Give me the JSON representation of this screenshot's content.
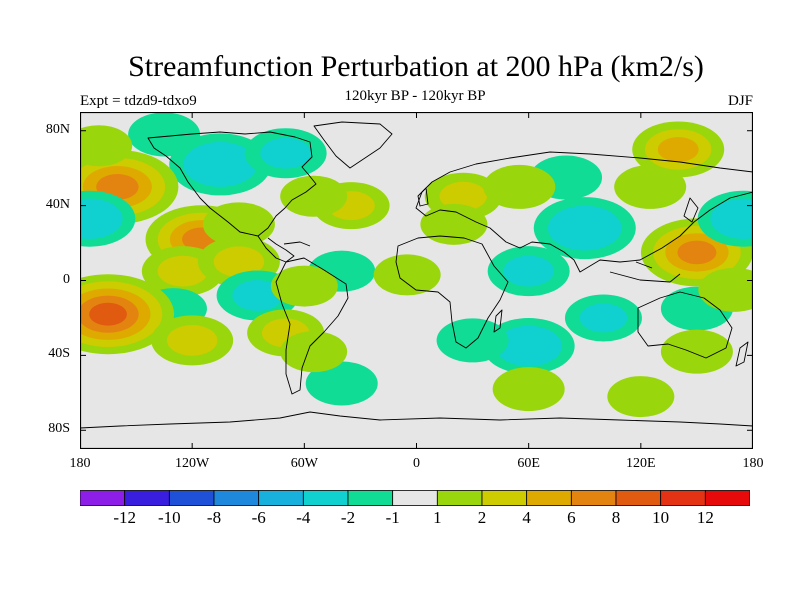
{
  "chart_data": {
    "type": "heatmap",
    "title": "Streamfunction Perturbation at 200 hPa (km2/s)",
    "subtitle": "120kyr BP - 120kyr BP",
    "left_label": "Expt = tdzd9-tdxo9",
    "right_label": "DJF",
    "x_ticks": [
      {
        "value": -180,
        "label": "180"
      },
      {
        "value": -120,
        "label": "120W"
      },
      {
        "value": -60,
        "label": "60W"
      },
      {
        "value": 0,
        "label": "0"
      },
      {
        "value": 60,
        "label": "60E"
      },
      {
        "value": 120,
        "label": "120E"
      },
      {
        "value": 180,
        "label": "180"
      }
    ],
    "y_ticks": [
      {
        "value": 80,
        "label": "80N"
      },
      {
        "value": 40,
        "label": "40N"
      },
      {
        "value": 0,
        "label": "0"
      },
      {
        "value": -40,
        "label": "40S"
      },
      {
        "value": -80,
        "label": "80S"
      }
    ],
    "xlim": [
      -180,
      180
    ],
    "ylim": [
      -90,
      90
    ],
    "colorbar": {
      "levels": [
        "-12",
        "-10",
        "-8",
        "-6",
        "-4",
        "-2",
        "-1",
        "1",
        "2",
        "4",
        "6",
        "8",
        "10",
        "12"
      ],
      "colors": [
        "#8c1ee8",
        "#3a1ee0",
        "#1e50d8",
        "#1e88dc",
        "#18b0dc",
        "#10d0d0",
        "#10dc96",
        "#e6e6e6",
        "#9ad60c",
        "#cccc00",
        "#deaa00",
        "#e48410",
        "#e05a10",
        "#e43214",
        "#e60a0a"
      ]
    },
    "anomalies": [
      {
        "lon": -105,
        "lat": 62,
        "value": -5
      },
      {
        "lon": -70,
        "lat": 68,
        "value": -3
      },
      {
        "lon": -135,
        "lat": 78,
        "value": -2
      },
      {
        "lon": -160,
        "lat": 50,
        "value": 7
      },
      {
        "lon": -175,
        "lat": 33,
        "value": -4
      },
      {
        "lon": -115,
        "lat": 22,
        "value": 6
      },
      {
        "lon": -125,
        "lat": 5,
        "value": 3
      },
      {
        "lon": -95,
        "lat": 10,
        "value": 3
      },
      {
        "lon": -95,
        "lat": 30,
        "value": 2
      },
      {
        "lon": -35,
        "lat": 40,
        "value": 2.5
      },
      {
        "lon": -55,
        "lat": 45,
        "value": 1.5
      },
      {
        "lon": -85,
        "lat": -8,
        "value": -3
      },
      {
        "lon": -130,
        "lat": -15,
        "value": -1.5
      },
      {
        "lon": -40,
        "lat": 5,
        "value": -1.5
      },
      {
        "lon": -60,
        "lat": -3,
        "value": 1.5
      },
      {
        "lon": -5,
        "lat": 3,
        "value": 1.5
      },
      {
        "lon": -165,
        "lat": -18,
        "value": 8
      },
      {
        "lon": -120,
        "lat": -32,
        "value": 3
      },
      {
        "lon": -70,
        "lat": -28,
        "value": 2.5
      },
      {
        "lon": -40,
        "lat": -55,
        "value": -2
      },
      {
        "lon": -55,
        "lat": -38,
        "value": 1.5
      },
      {
        "lon": 90,
        "lat": 28,
        "value": -5
      },
      {
        "lon": 60,
        "lat": 5,
        "value": -3
      },
      {
        "lon": 80,
        "lat": 55,
        "value": -2
      },
      {
        "lon": 25,
        "lat": 45,
        "value": 2.5
      },
      {
        "lon": 55,
        "lat": 50,
        "value": 2
      },
      {
        "lon": 125,
        "lat": 50,
        "value": 2
      },
      {
        "lon": 150,
        "lat": 15,
        "value": 6
      },
      {
        "lon": 175,
        "lat": 33,
        "value": -4
      },
      {
        "lon": 140,
        "lat": 70,
        "value": 4
      },
      {
        "lon": -170,
        "lat": 72,
        "value": 1.5
      },
      {
        "lon": 60,
        "lat": -35,
        "value": -4
      },
      {
        "lon": 100,
        "lat": -20,
        "value": -2.5
      },
      {
        "lon": 30,
        "lat": -32,
        "value": -2
      },
      {
        "lon": 150,
        "lat": -15,
        "value": -2
      },
      {
        "lon": 150,
        "lat": -38,
        "value": 2
      },
      {
        "lon": 60,
        "lat": -58,
        "value": 2
      },
      {
        "lon": 120,
        "lat": -62,
        "value": 1.5
      },
      {
        "lon": 170,
        "lat": -5,
        "value": 2
      },
      {
        "lon": 20,
        "lat": 30,
        "value": 1.5
      }
    ]
  }
}
